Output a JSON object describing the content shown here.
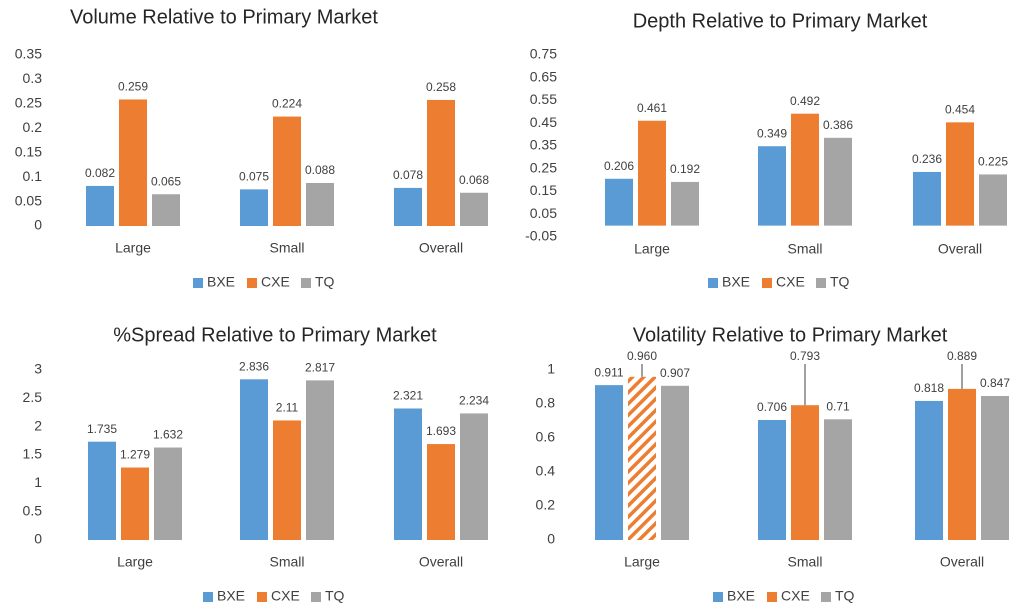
{
  "chart_data": [
    {
      "type": "bar",
      "title": "Volume Relative to Primary Market",
      "categories": [
        "Large",
        "Small",
        "Overall"
      ],
      "series": [
        {
          "name": "BXE",
          "color": "#5b9bd5",
          "values": [
            0.082,
            0.075,
            0.078
          ]
        },
        {
          "name": "CXE",
          "color": "#ed7d31",
          "values": [
            0.259,
            0.224,
            0.258
          ]
        },
        {
          "name": "TQ",
          "color": "#a5a5a5",
          "values": [
            0.065,
            0.088,
            0.068
          ]
        }
      ],
      "ylim": [
        0,
        0.35
      ],
      "yticks": [
        0,
        0.05,
        0.1,
        0.15,
        0.2,
        0.25,
        0.3,
        0.35
      ],
      "legend": "bottom"
    },
    {
      "type": "bar",
      "title": "Depth Relative to Primary Market",
      "categories": [
        "Large",
        "Small",
        "Overall"
      ],
      "series": [
        {
          "name": "BXE",
          "color": "#5b9bd5",
          "values": [
            0.206,
            0.349,
            0.236
          ]
        },
        {
          "name": "CXE",
          "color": "#ed7d31",
          "values": [
            0.461,
            0.492,
            0.454
          ]
        },
        {
          "name": "TQ",
          "color": "#a5a5a5",
          "values": [
            0.192,
            0.386,
            0.225
          ]
        }
      ],
      "ylim": [
        -0.05,
        0.75
      ],
      "yticks": [
        -0.05,
        0.05,
        0.15,
        0.25,
        0.35,
        0.45,
        0.55,
        0.65,
        0.75
      ],
      "legend": "bottom"
    },
    {
      "type": "bar",
      "title": "%Spread Relative to Primary Market",
      "categories": [
        "Large",
        "Small",
        "Overall"
      ],
      "series": [
        {
          "name": "BXE",
          "color": "#5b9bd5",
          "values": [
            1.735,
            2.836,
            2.321
          ]
        },
        {
          "name": "CXE",
          "color": "#ed7d31",
          "values": [
            1.279,
            2.11,
            1.693
          ]
        },
        {
          "name": "TQ",
          "color": "#a5a5a5",
          "values": [
            1.632,
            2.817,
            2.234
          ]
        }
      ],
      "ylim": [
        0,
        3
      ],
      "yticks": [
        0,
        0.5,
        1,
        1.5,
        2,
        2.5,
        3
      ],
      "legend": "bottom"
    },
    {
      "type": "bar",
      "title": "Volatility Relative to Primary Market",
      "categories": [
        "Large",
        "Small",
        "Overall"
      ],
      "series": [
        {
          "name": "BXE",
          "color": "#5b9bd5",
          "values": [
            0.911,
            0.706,
            0.818
          ]
        },
        {
          "name": "CXE",
          "color": "#ed7d31",
          "values": [
            0.96,
            0.793,
            0.889
          ],
          "value_labels": [
            "0.960",
            "0.793",
            "0.889"
          ],
          "hatch": [
            true,
            false,
            false
          ]
        },
        {
          "name": "TQ",
          "color": "#a5a5a5",
          "values": [
            0.907,
            0.71,
            0.847
          ]
        }
      ],
      "ylim": [
        0,
        1
      ],
      "yticks": [
        0,
        0.2,
        0.4,
        0.6,
        0.8,
        1
      ],
      "legend": "bottom"
    }
  ]
}
